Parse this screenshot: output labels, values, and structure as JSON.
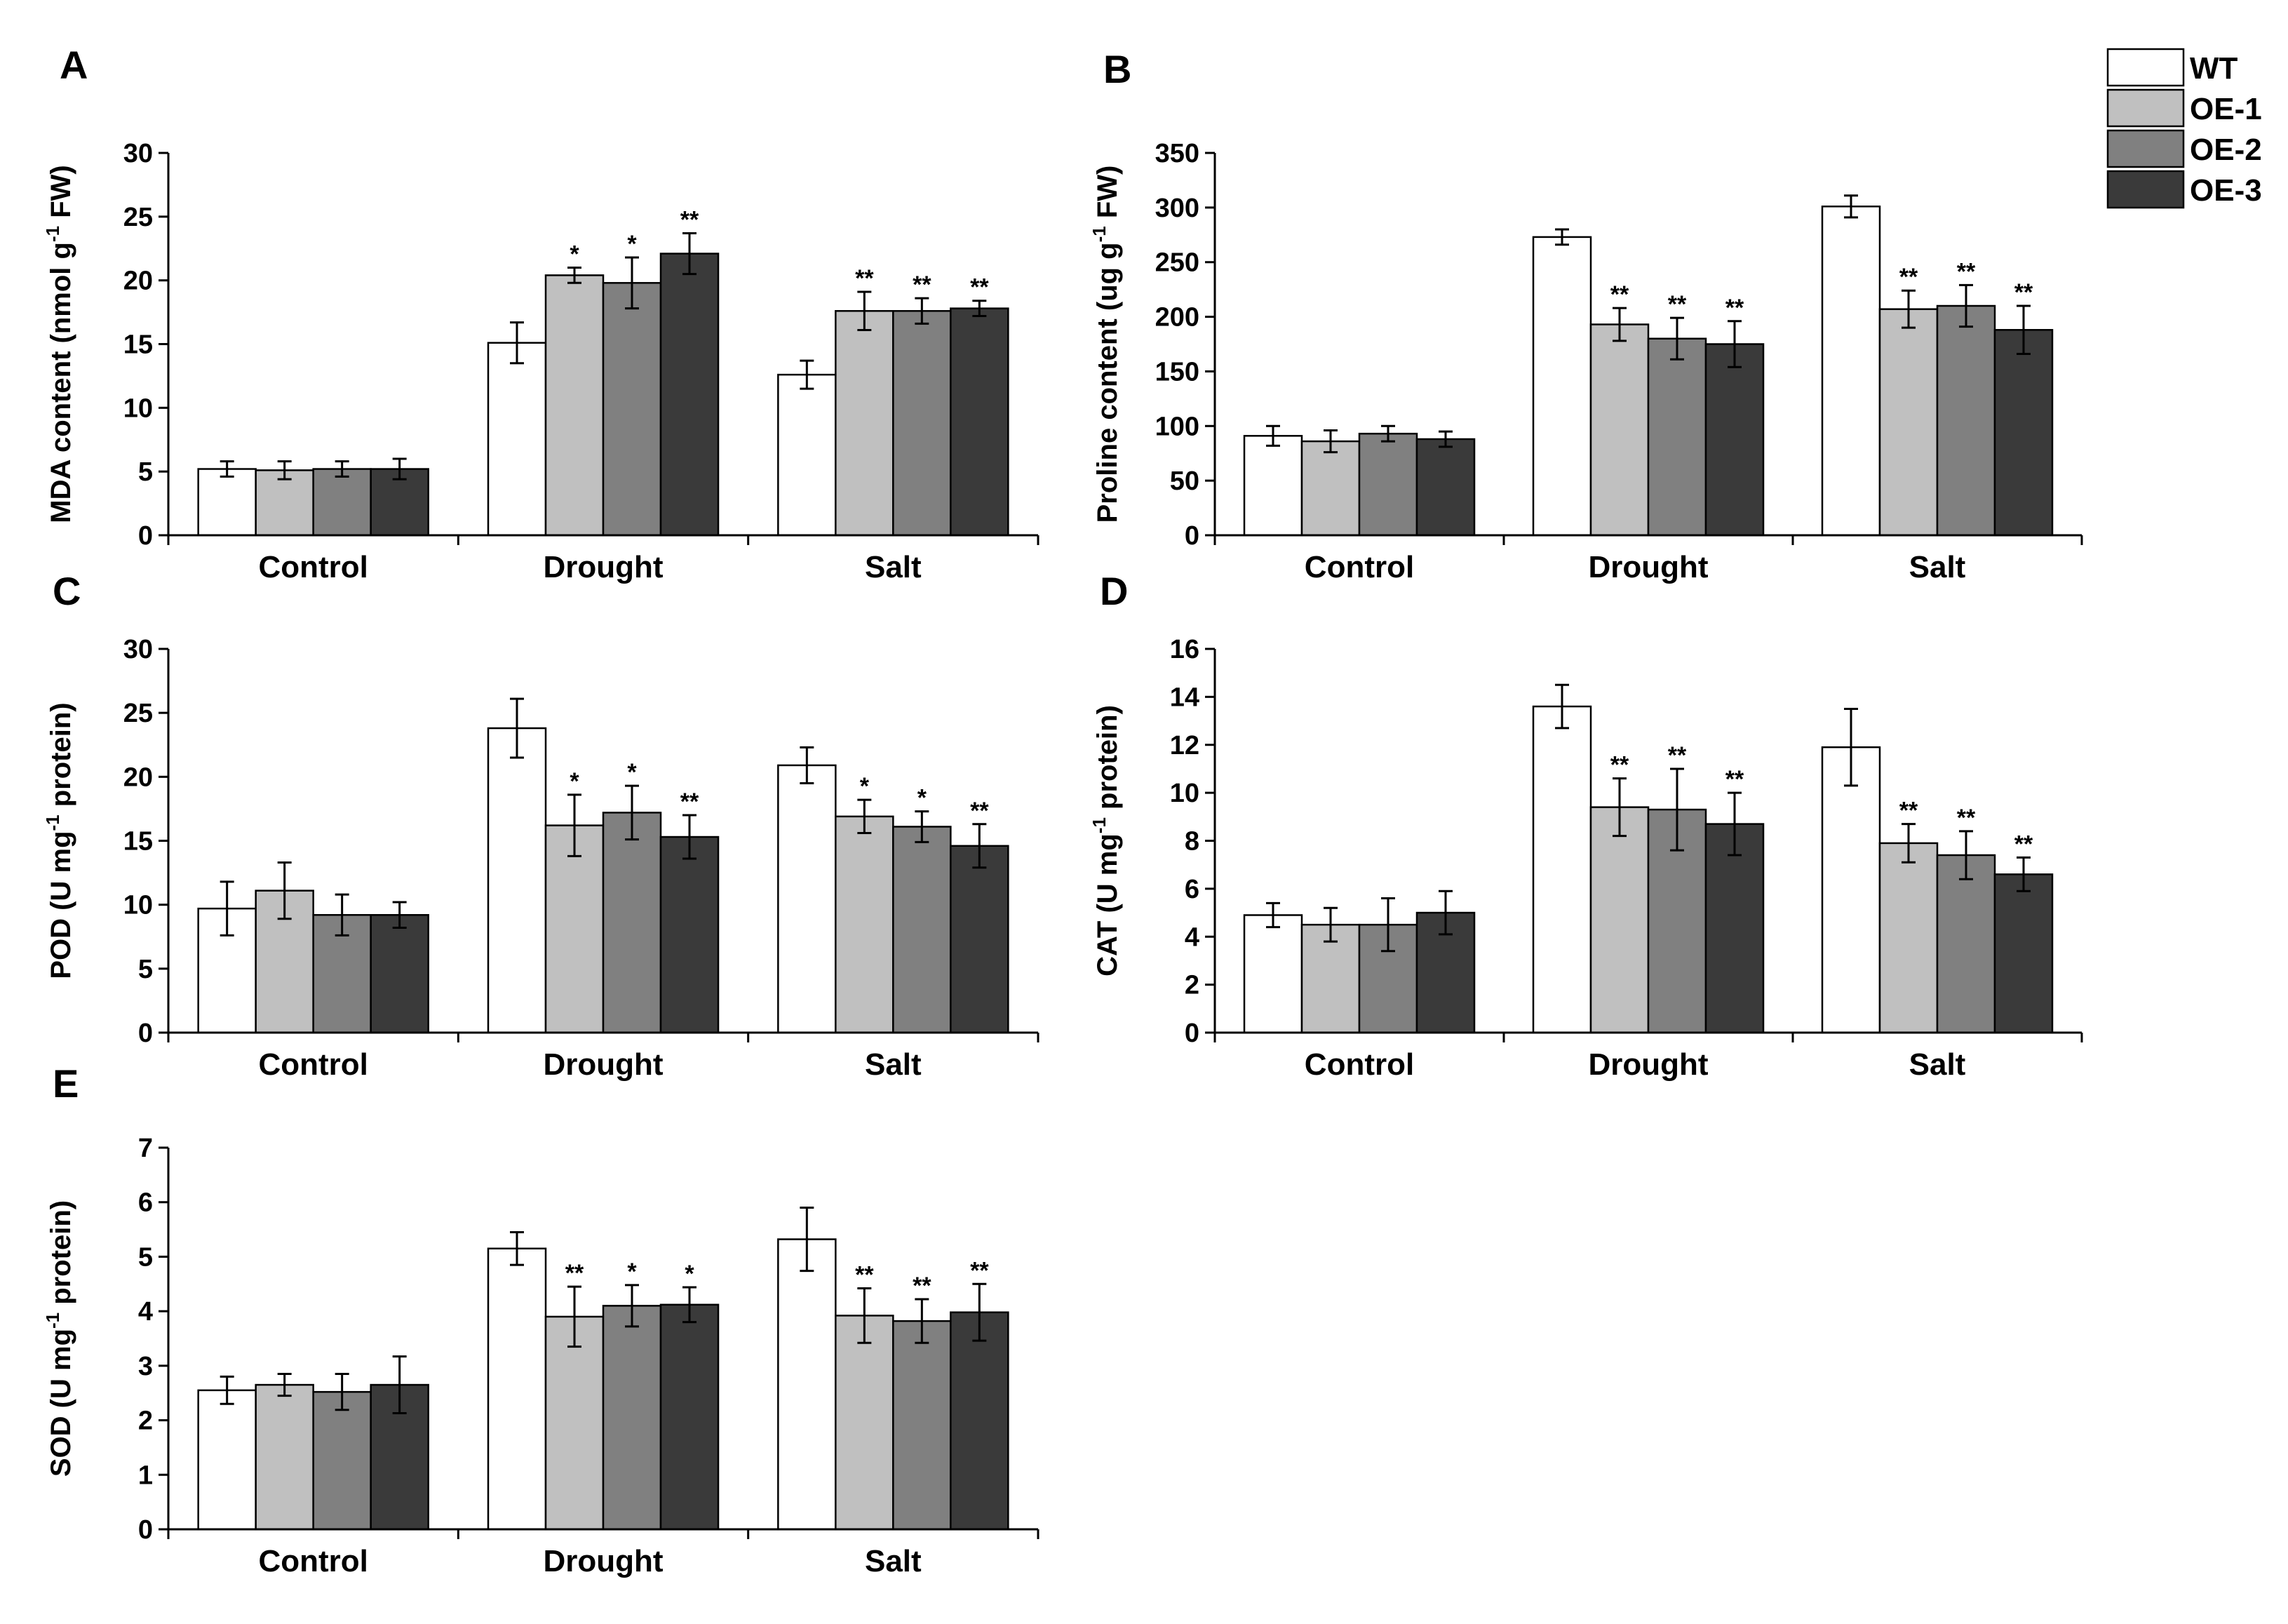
{
  "legend": [
    {
      "name": "WT",
      "color": "#ffffff"
    },
    {
      "name": "OE-1",
      "color": "#c0c0c0"
    },
    {
      "name": "OE-2",
      "color": "#808080"
    },
    {
      "name": "OE-3",
      "color": "#3a3a3a"
    }
  ],
  "chart_data": [
    {
      "id": "A",
      "letter": "A",
      "type": "bar",
      "categories": [
        "Control",
        "Drought",
        "Salt"
      ],
      "ylabel": {
        "pre": "MDA content (nmol g",
        "sup": "-1",
        "post": " FW)"
      },
      "ylim": [
        0,
        30
      ],
      "yticks": [
        0,
        5,
        10,
        15,
        20,
        25,
        30
      ],
      "series": [
        {
          "name": "WT",
          "values": [
            5.2,
            15.1,
            12.6
          ],
          "errors": [
            0.6,
            1.6,
            1.1
          ],
          "sig": [
            "",
            "",
            ""
          ]
        },
        {
          "name": "OE-1",
          "values": [
            5.1,
            20.4,
            17.6
          ],
          "errors": [
            0.7,
            0.6,
            1.5
          ],
          "sig": [
            "",
            "*",
            "**"
          ]
        },
        {
          "name": "OE-2",
          "values": [
            5.2,
            19.8,
            17.6
          ],
          "errors": [
            0.6,
            2.0,
            1.0
          ],
          "sig": [
            "",
            "*",
            "**"
          ]
        },
        {
          "name": "OE-3",
          "values": [
            5.2,
            22.1,
            17.8
          ],
          "errors": [
            0.8,
            1.6,
            0.6
          ],
          "sig": [
            "",
            "**",
            "**"
          ]
        }
      ]
    },
    {
      "id": "B",
      "letter": "B",
      "type": "bar",
      "categories": [
        "Control",
        "Drought",
        "Salt"
      ],
      "ylabel": {
        "pre": "Proline content  (ug g",
        "sup": "-1",
        "post": " FW)"
      },
      "ylim": [
        0,
        350
      ],
      "yticks": [
        0,
        50,
        100,
        150,
        200,
        250,
        300,
        350
      ],
      "series": [
        {
          "name": "WT",
          "values": [
            91,
            273,
            301
          ],
          "errors": [
            9,
            7,
            10
          ],
          "sig": [
            "",
            "",
            ""
          ]
        },
        {
          "name": "OE-1",
          "values": [
            86,
            193,
            207
          ],
          "errors": [
            10,
            15,
            17
          ],
          "sig": [
            "",
            "**",
            "**"
          ]
        },
        {
          "name": "OE-2",
          "values": [
            93,
            180,
            210
          ],
          "errors": [
            7,
            19,
            19
          ],
          "sig": [
            "",
            "**",
            "**"
          ]
        },
        {
          "name": "OE-3",
          "values": [
            88,
            175,
            188
          ],
          "errors": [
            7,
            21,
            22
          ],
          "sig": [
            "",
            "**",
            "**"
          ]
        }
      ]
    },
    {
      "id": "C",
      "letter": "C",
      "type": "bar",
      "categories": [
        "Control",
        "Drought",
        "Salt"
      ],
      "ylabel": {
        "pre": "POD (U mg",
        "sup": "-1",
        "post": " protein)"
      },
      "ylim": [
        0,
        30
      ],
      "yticks": [
        0,
        5,
        10,
        15,
        20,
        25,
        30
      ],
      "series": [
        {
          "name": "WT",
          "values": [
            9.7,
            23.8,
            20.9
          ],
          "errors": [
            2.1,
            2.3,
            1.4
          ],
          "sig": [
            "",
            "",
            ""
          ]
        },
        {
          "name": "OE-1",
          "values": [
            11.1,
            16.2,
            16.9
          ],
          "errors": [
            2.2,
            2.4,
            1.3
          ],
          "sig": [
            "",
            "*",
            "*"
          ]
        },
        {
          "name": "OE-2",
          "values": [
            9.2,
            17.2,
            16.1
          ],
          "errors": [
            1.6,
            2.1,
            1.2
          ],
          "sig": [
            "",
            "*",
            "*"
          ]
        },
        {
          "name": "OE-3",
          "values": [
            9.2,
            15.3,
            14.6
          ],
          "errors": [
            1.0,
            1.7,
            1.7
          ],
          "sig": [
            "",
            "**",
            "**"
          ]
        }
      ]
    },
    {
      "id": "D",
      "letter": "D",
      "type": "bar",
      "categories": [
        "Control",
        "Drought",
        "Salt"
      ],
      "ylabel": {
        "pre": "CAT (U mg",
        "sup": "-1",
        "post": " protein)"
      },
      "ylim": [
        0,
        16
      ],
      "yticks": [
        0,
        2,
        4,
        6,
        8,
        10,
        12,
        14,
        16
      ],
      "series": [
        {
          "name": "WT",
          "values": [
            4.9,
            13.6,
            11.9
          ],
          "errors": [
            0.5,
            0.9,
            1.6
          ],
          "sig": [
            "",
            "",
            ""
          ]
        },
        {
          "name": "OE-1",
          "values": [
            4.5,
            9.4,
            7.9
          ],
          "errors": [
            0.7,
            1.2,
            0.8
          ],
          "sig": [
            "",
            "**",
            "**"
          ]
        },
        {
          "name": "OE-2",
          "values": [
            4.5,
            9.3,
            7.4
          ],
          "errors": [
            1.1,
            1.7,
            1.0
          ],
          "sig": [
            "",
            "**",
            "**"
          ]
        },
        {
          "name": "OE-3",
          "values": [
            5.0,
            8.7,
            6.6
          ],
          "errors": [
            0.9,
            1.3,
            0.7
          ],
          "sig": [
            "",
            "**",
            "**"
          ]
        }
      ]
    },
    {
      "id": "E",
      "letter": "E",
      "type": "bar",
      "categories": [
        "Control",
        "Drought",
        "Salt"
      ],
      "ylabel": {
        "pre": "SOD (U mg",
        "sup": "-1",
        "post": " protein)"
      },
      "ylim": [
        0,
        7
      ],
      "yticks": [
        0,
        1,
        2,
        3,
        4,
        5,
        6,
        7
      ],
      "series": [
        {
          "name": "WT",
          "values": [
            2.55,
            5.15,
            5.32
          ],
          "errors": [
            0.25,
            0.3,
            0.58
          ],
          "sig": [
            "",
            "",
            ""
          ]
        },
        {
          "name": "OE-1",
          "values": [
            2.65,
            3.9,
            3.92
          ],
          "errors": [
            0.2,
            0.55,
            0.5
          ],
          "sig": [
            "",
            "**",
            "**"
          ]
        },
        {
          "name": "OE-2",
          "values": [
            2.52,
            4.1,
            3.82
          ],
          "errors": [
            0.33,
            0.38,
            0.4
          ],
          "sig": [
            "",
            "*",
            "**"
          ]
        },
        {
          "name": "OE-3",
          "values": [
            2.65,
            4.12,
            3.98
          ],
          "errors": [
            0.52,
            0.32,
            0.52
          ],
          "sig": [
            "",
            "*",
            "**"
          ]
        }
      ]
    }
  ]
}
